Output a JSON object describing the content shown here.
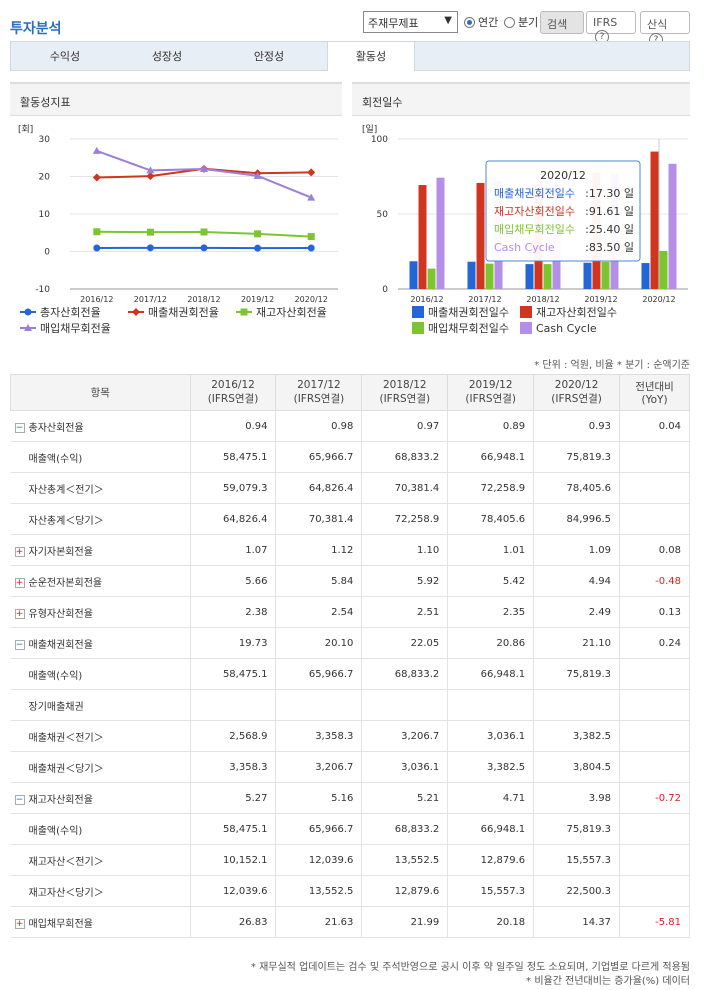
{
  "header": {
    "title": "투자분석",
    "select_value": "주재무제표",
    "radio_annual": "연간",
    "radio_quarter": "분기",
    "search_btn": "검색",
    "ifrs_btn": "IFRS",
    "formula_btn": "산식"
  },
  "tabs": [
    "수익성",
    "성장성",
    "안정성",
    "활동성"
  ],
  "left_panel": {
    "title": "활동성지표",
    "unit": "[회]",
    "chart_data": {
      "type": "line",
      "categories": [
        "2016/12",
        "2017/12",
        "2018/12",
        "2019/12",
        "2020/12"
      ],
      "ylim": [
        -10,
        30
      ],
      "yticks": [
        "30",
        "20",
        "10",
        "0",
        "-10"
      ],
      "series": [
        {
          "name": "총자산회전율",
          "values": [
            0.94,
            0.98,
            0.97,
            0.89,
            0.93
          ],
          "color": "#2566d6",
          "marker": "circle"
        },
        {
          "name": "매출채권회전율",
          "values": [
            19.73,
            20.1,
            22.05,
            20.86,
            21.1
          ],
          "color": "#d0351f",
          "marker": "diamond"
        },
        {
          "name": "재고자산회전율",
          "values": [
            5.27,
            5.16,
            5.21,
            4.71,
            3.98
          ],
          "color": "#7cc531",
          "marker": "square"
        },
        {
          "name": "매입채무회전율",
          "values": [
            26.83,
            21.63,
            21.99,
            20.18,
            14.37
          ],
          "color": "#9b7fd8",
          "marker": "triangle"
        }
      ]
    }
  },
  "right_panel": {
    "title": "회전일수",
    "unit": "[일]",
    "chart_data": {
      "type": "bar",
      "categories": [
        "2016/12",
        "2017/12",
        "2018/12",
        "2019/12",
        "2020/12"
      ],
      "ylim": [
        0,
        100
      ],
      "yticks": [
        "100",
        "50",
        "0"
      ],
      "series": [
        {
          "name": "매출채권회전일수",
          "values": [
            18.5,
            18.2,
            16.6,
            17.5,
            17.3
          ],
          "color": "#2566d6"
        },
        {
          "name": "재고자산회전일수",
          "values": [
            69.3,
            70.7,
            70.0,
            77.5,
            91.61
          ],
          "color": "#d0351f"
        },
        {
          "name": "매입채무회전일수",
          "values": [
            13.6,
            16.9,
            16.6,
            18.1,
            25.4
          ],
          "color": "#7cc531"
        },
        {
          "name": "Cash Cycle",
          "values": [
            74.2,
            72.0,
            70.0,
            76.9,
            83.5
          ],
          "color": "#b58ee8"
        }
      ]
    },
    "tooltip": {
      "title": "2020/12",
      "rows": [
        {
          "label": "매출채권회전일수",
          "value": ":17.30 일",
          "color": "#2566d6"
        },
        {
          "label": "재고자산회전일수",
          "value": ":91.61 일",
          "color": "#d0351f"
        },
        {
          "label": "매입채무회전일수",
          "value": ":25.40 일",
          "color": "#7cc531"
        },
        {
          "label": "Cash Cycle",
          "value": ":83.50 일",
          "color": "#b58ee8"
        }
      ]
    }
  },
  "unit_note": "* 단위 : 억원, 비율   * 분기 : 순액기준",
  "table": {
    "header": [
      "항목",
      "2016/12\n(IFRS연결)",
      "2017/12\n(IFRS연결)",
      "2018/12\n(IFRS연결)",
      "2019/12\n(IFRS연결)",
      "2020/12\n(IFRS연결)",
      "전년대비\n(YoY)"
    ],
    "rows": [
      {
        "label": "총자산회전율",
        "icon": "minus",
        "vals": [
          "0.94",
          "0.98",
          "0.97",
          "0.89",
          "0.93",
          "0.04"
        ]
      },
      {
        "label": "매출액(수익)",
        "sub": true,
        "vals": [
          "58,475.1",
          "65,966.7",
          "68,833.2",
          "66,948.1",
          "75,819.3",
          ""
        ]
      },
      {
        "label": "자산총계＜전기＞",
        "sub": true,
        "vals": [
          "59,079.3",
          "64,826.4",
          "70,381.4",
          "72,258.9",
          "78,405.6",
          ""
        ]
      },
      {
        "label": "자산총계＜당기＞",
        "sub": true,
        "vals": [
          "64,826.4",
          "70,381.4",
          "72,258.9",
          "78,405.6",
          "84,996.5",
          ""
        ]
      },
      {
        "label": "자기자본회전율",
        "icon": "plus",
        "vals": [
          "1.07",
          "1.12",
          "1.10",
          "1.01",
          "1.09",
          "0.08"
        ]
      },
      {
        "label": "순운전자본회전율",
        "icon": "plus",
        "vals": [
          "5.66",
          "5.84",
          "5.92",
          "5.42",
          "4.94",
          "-0.48"
        ]
      },
      {
        "label": "유형자산회전율",
        "icon": "plus",
        "vals": [
          "2.38",
          "2.54",
          "2.51",
          "2.35",
          "2.49",
          "0.13"
        ]
      },
      {
        "label": "매출채권회전율",
        "icon": "minus",
        "vals": [
          "19.73",
          "20.10",
          "22.05",
          "20.86",
          "21.10",
          "0.24"
        ]
      },
      {
        "label": "매출액(수익)",
        "sub": true,
        "vals": [
          "58,475.1",
          "65,966.7",
          "68,833.2",
          "66,948.1",
          "75,819.3",
          ""
        ]
      },
      {
        "label": "장기매출채권",
        "sub": true,
        "vals": [
          "",
          "",
          "",
          "",
          "",
          ""
        ]
      },
      {
        "label": "매출채권＜전기＞",
        "sub": true,
        "vals": [
          "2,568.9",
          "3,358.3",
          "3,206.7",
          "3,036.1",
          "3,382.5",
          ""
        ]
      },
      {
        "label": "매출채권＜당기＞",
        "sub": true,
        "vals": [
          "3,358.3",
          "3,206.7",
          "3,036.1",
          "3,382.5",
          "3,804.5",
          ""
        ]
      },
      {
        "label": "재고자산회전율",
        "icon": "minus",
        "vals": [
          "5.27",
          "5.16",
          "5.21",
          "4.71",
          "3.98",
          "-0.72"
        ]
      },
      {
        "label": "매출액(수익)",
        "sub": true,
        "vals": [
          "58,475.1",
          "65,966.7",
          "68,833.2",
          "66,948.1",
          "75,819.3",
          ""
        ]
      },
      {
        "label": "재고자산＜전기＞",
        "sub": true,
        "vals": [
          "10,152.1",
          "12,039.6",
          "13,552.5",
          "12,879.6",
          "15,557.3",
          ""
        ]
      },
      {
        "label": "재고자산＜당기＞",
        "sub": true,
        "vals": [
          "12,039.6",
          "13,552.5",
          "12,879.6",
          "15,557.3",
          "22,500.3",
          ""
        ]
      },
      {
        "label": "매입채무회전율",
        "icon": "plus",
        "vals": [
          "26.83",
          "21.63",
          "21.99",
          "20.18",
          "14.37",
          "-5.81"
        ]
      }
    ]
  },
  "footnotes": [
    "* 재무실적 업데이트는 검수 및 주석반영으로 공시 이후 약 일주일 정도 소요되며, 기업별로 다르게 적용됨",
    "* 비율간 전년대비는 증가율(%) 데이터"
  ]
}
